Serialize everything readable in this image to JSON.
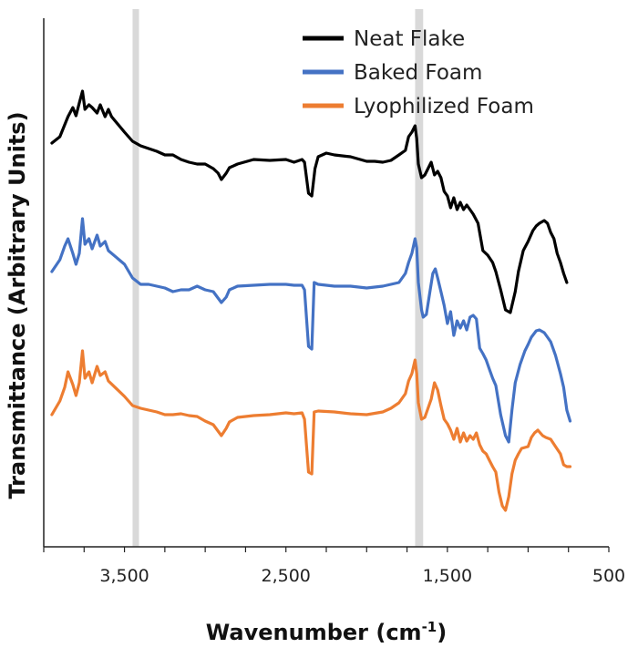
{
  "chart_data": {
    "type": "line",
    "xlabel": "Wavenumber (cm",
    "xlabel_sup": "-1",
    "xlabel_suffix": ")",
    "ylabel": "Transmittance (Arbitrary Units)",
    "x_reversed": true,
    "xlim": [
      4000,
      500
    ],
    "x_ticks": [
      {
        "value": 3500,
        "label": "3,500"
      },
      {
        "value": 2500,
        "label": "2,500"
      },
      {
        "value": 1500,
        "label": "1,500"
      },
      {
        "value": 500,
        "label": "500"
      }
    ],
    "y_ticks_labels": false,
    "grid": false,
    "legend_position": "top-right",
    "highlight_bands": [
      [
        3450,
        3410
      ],
      [
        1700,
        1650
      ]
    ],
    "highlight_color": "#d9d9d9",
    "series": [
      {
        "name": "Neat Flake",
        "color": "#000000",
        "points": [
          [
            3950,
            157
          ],
          [
            3900,
            150
          ],
          [
            3850,
            128
          ],
          [
            3820,
            118
          ],
          [
            3800,
            127
          ],
          [
            3780,
            113
          ],
          [
            3760,
            100
          ],
          [
            3745,
            120
          ],
          [
            3720,
            115
          ],
          [
            3700,
            118
          ],
          [
            3670,
            124
          ],
          [
            3650,
            115
          ],
          [
            3620,
            128
          ],
          [
            3600,
            120
          ],
          [
            3580,
            128
          ],
          [
            3500,
            145
          ],
          [
            3450,
            155
          ],
          [
            3400,
            160
          ],
          [
            3350,
            163
          ],
          [
            3300,
            166
          ],
          [
            3250,
            170
          ],
          [
            3200,
            170
          ],
          [
            3150,
            175
          ],
          [
            3100,
            178
          ],
          [
            3050,
            180
          ],
          [
            3000,
            180
          ],
          [
            2950,
            185
          ],
          [
            2920,
            190
          ],
          [
            2900,
            197
          ],
          [
            2870,
            190
          ],
          [
            2850,
            184
          ],
          [
            2800,
            180
          ],
          [
            2700,
            175
          ],
          [
            2600,
            176
          ],
          [
            2500,
            175
          ],
          [
            2450,
            178
          ],
          [
            2400,
            175
          ],
          [
            2385,
            178
          ],
          [
            2360,
            212
          ],
          [
            2340,
            215
          ],
          [
            2320,
            185
          ],
          [
            2300,
            172
          ],
          [
            2250,
            168
          ],
          [
            2200,
            170
          ],
          [
            2100,
            172
          ],
          [
            2000,
            177
          ],
          [
            1950,
            177
          ],
          [
            1900,
            178
          ],
          [
            1850,
            176
          ],
          [
            1800,
            170
          ],
          [
            1760,
            165
          ],
          [
            1740,
            150
          ],
          [
            1720,
            145
          ],
          [
            1700,
            138
          ],
          [
            1690,
            152
          ],
          [
            1680,
            180
          ],
          [
            1660,
            195
          ],
          [
            1640,
            192
          ],
          [
            1620,
            185
          ],
          [
            1600,
            178
          ],
          [
            1580,
            192
          ],
          [
            1560,
            188
          ],
          [
            1540,
            195
          ],
          [
            1520,
            210
          ],
          [
            1500,
            215
          ],
          [
            1480,
            228
          ],
          [
            1460,
            217
          ],
          [
            1440,
            230
          ],
          [
            1420,
            222
          ],
          [
            1400,
            230
          ],
          [
            1380,
            225
          ],
          [
            1360,
            230
          ],
          [
            1340,
            235
          ],
          [
            1310,
            245
          ],
          [
            1280,
            275
          ],
          [
            1250,
            280
          ],
          [
            1220,
            288
          ],
          [
            1200,
            298
          ],
          [
            1170,
            318
          ],
          [
            1140,
            340
          ],
          [
            1110,
            343
          ],
          [
            1080,
            320
          ],
          [
            1060,
            298
          ],
          [
            1030,
            275
          ],
          [
            1000,
            265
          ],
          [
            970,
            253
          ],
          [
            950,
            248
          ],
          [
            930,
            245
          ],
          [
            900,
            242
          ],
          [
            880,
            245
          ],
          [
            860,
            255
          ],
          [
            840,
            262
          ],
          [
            820,
            278
          ],
          [
            800,
            288
          ],
          [
            780,
            300
          ],
          [
            760,
            310
          ]
        ]
      },
      {
        "name": "Baked Foam",
        "color": "#4472c4",
        "points": [
          [
            3950,
            298
          ],
          [
            3900,
            285
          ],
          [
            3870,
            270
          ],
          [
            3850,
            262
          ],
          [
            3820,
            278
          ],
          [
            3800,
            290
          ],
          [
            3780,
            278
          ],
          [
            3760,
            240
          ],
          [
            3745,
            268
          ],
          [
            3720,
            262
          ],
          [
            3700,
            273
          ],
          [
            3670,
            258
          ],
          [
            3650,
            270
          ],
          [
            3620,
            265
          ],
          [
            3600,
            275
          ],
          [
            3500,
            290
          ],
          [
            3450,
            305
          ],
          [
            3400,
            312
          ],
          [
            3350,
            312
          ],
          [
            3300,
            314
          ],
          [
            3250,
            316
          ],
          [
            3200,
            320
          ],
          [
            3150,
            318
          ],
          [
            3100,
            318
          ],
          [
            3050,
            314
          ],
          [
            3000,
            318
          ],
          [
            2950,
            320
          ],
          [
            2900,
            332
          ],
          [
            2870,
            326
          ],
          [
            2850,
            318
          ],
          [
            2800,
            314
          ],
          [
            2700,
            313
          ],
          [
            2600,
            312
          ],
          [
            2500,
            312
          ],
          [
            2450,
            313
          ],
          [
            2400,
            313
          ],
          [
            2385,
            318
          ],
          [
            2360,
            380
          ],
          [
            2340,
            383
          ],
          [
            2325,
            310
          ],
          [
            2300,
            312
          ],
          [
            2200,
            314
          ],
          [
            2100,
            314
          ],
          [
            2000,
            316
          ],
          [
            1900,
            314
          ],
          [
            1850,
            312
          ],
          [
            1800,
            310
          ],
          [
            1760,
            300
          ],
          [
            1740,
            288
          ],
          [
            1720,
            278
          ],
          [
            1700,
            262
          ],
          [
            1690,
            272
          ],
          [
            1680,
            310
          ],
          [
            1660,
            340
          ],
          [
            1650,
            348
          ],
          [
            1630,
            345
          ],
          [
            1610,
            322
          ],
          [
            1590,
            300
          ],
          [
            1575,
            295
          ],
          [
            1560,
            305
          ],
          [
            1540,
            320
          ],
          [
            1520,
            335
          ],
          [
            1500,
            355
          ],
          [
            1480,
            342
          ],
          [
            1460,
            368
          ],
          [
            1440,
            352
          ],
          [
            1420,
            360
          ],
          [
            1400,
            352
          ],
          [
            1380,
            362
          ],
          [
            1360,
            348
          ],
          [
            1340,
            346
          ],
          [
            1320,
            350
          ],
          [
            1300,
            382
          ],
          [
            1280,
            388
          ],
          [
            1260,
            395
          ],
          [
            1240,
            405
          ],
          [
            1220,
            415
          ],
          [
            1200,
            423
          ],
          [
            1170,
            455
          ],
          [
            1140,
            478
          ],
          [
            1120,
            485
          ],
          [
            1100,
            450
          ],
          [
            1080,
            420
          ],
          [
            1050,
            400
          ],
          [
            1020,
            385
          ],
          [
            1000,
            378
          ],
          [
            980,
            370
          ],
          [
            950,
            363
          ],
          [
            930,
            362
          ],
          [
            900,
            365
          ],
          [
            880,
            370
          ],
          [
            860,
            375
          ],
          [
            830,
            390
          ],
          [
            800,
            410
          ],
          [
            780,
            425
          ],
          [
            760,
            450
          ],
          [
            740,
            462
          ]
        ]
      },
      {
        "name": "Lyophilized Foam",
        "color": "#ed7d31",
        "points": [
          [
            3950,
            455
          ],
          [
            3900,
            440
          ],
          [
            3870,
            425
          ],
          [
            3850,
            408
          ],
          [
            3820,
            422
          ],
          [
            3800,
            434
          ],
          [
            3780,
            420
          ],
          [
            3760,
            385
          ],
          [
            3745,
            415
          ],
          [
            3720,
            408
          ],
          [
            3700,
            420
          ],
          [
            3670,
            402
          ],
          [
            3650,
            412
          ],
          [
            3620,
            408
          ],
          [
            3600,
            418
          ],
          [
            3500,
            435
          ],
          [
            3450,
            445
          ],
          [
            3400,
            448
          ],
          [
            3350,
            450
          ],
          [
            3300,
            452
          ],
          [
            3250,
            455
          ],
          [
            3200,
            455
          ],
          [
            3150,
            454
          ],
          [
            3100,
            456
          ],
          [
            3050,
            457
          ],
          [
            3000,
            462
          ],
          [
            2950,
            466
          ],
          [
            2900,
            478
          ],
          [
            2870,
            470
          ],
          [
            2850,
            463
          ],
          [
            2800,
            458
          ],
          [
            2700,
            456
          ],
          [
            2600,
            455
          ],
          [
            2500,
            453
          ],
          [
            2450,
            454
          ],
          [
            2400,
            453
          ],
          [
            2385,
            460
          ],
          [
            2360,
            518
          ],
          [
            2340,
            520
          ],
          [
            2325,
            452
          ],
          [
            2300,
            451
          ],
          [
            2200,
            452
          ],
          [
            2100,
            454
          ],
          [
            2000,
            455
          ],
          [
            1900,
            452
          ],
          [
            1850,
            448
          ],
          [
            1800,
            442
          ],
          [
            1760,
            432
          ],
          [
            1740,
            418
          ],
          [
            1720,
            410
          ],
          [
            1700,
            395
          ],
          [
            1690,
            410
          ],
          [
            1680,
            442
          ],
          [
            1660,
            460
          ],
          [
            1640,
            458
          ],
          [
            1620,
            448
          ],
          [
            1600,
            438
          ],
          [
            1580,
            420
          ],
          [
            1560,
            428
          ],
          [
            1540,
            445
          ],
          [
            1520,
            460
          ],
          [
            1500,
            465
          ],
          [
            1480,
            472
          ],
          [
            1460,
            482
          ],
          [
            1440,
            470
          ],
          [
            1420,
            485
          ],
          [
            1400,
            475
          ],
          [
            1380,
            484
          ],
          [
            1360,
            478
          ],
          [
            1340,
            482
          ],
          [
            1320,
            475
          ],
          [
            1300,
            488
          ],
          [
            1280,
            495
          ],
          [
            1260,
            498
          ],
          [
            1240,
            505
          ],
          [
            1220,
            512
          ],
          [
            1200,
            518
          ],
          [
            1180,
            540
          ],
          [
            1160,
            555
          ],
          [
            1140,
            560
          ],
          [
            1120,
            545
          ],
          [
            1100,
            520
          ],
          [
            1080,
            505
          ],
          [
            1060,
            498
          ],
          [
            1040,
            492
          ],
          [
            1000,
            490
          ],
          [
            980,
            480
          ],
          [
            960,
            475
          ],
          [
            940,
            472
          ],
          [
            910,
            478
          ],
          [
            890,
            480
          ],
          [
            860,
            482
          ],
          [
            830,
            490
          ],
          [
            800,
            498
          ],
          [
            780,
            510
          ],
          [
            760,
            512
          ],
          [
            740,
            512
          ]
        ]
      }
    ]
  }
}
